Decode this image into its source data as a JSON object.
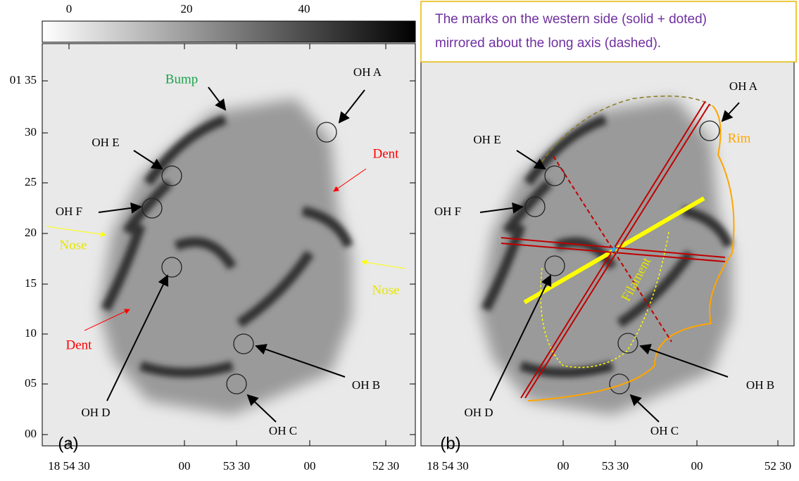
{
  "colorbar": {
    "ticks": [
      "0",
      "20",
      "40"
    ]
  },
  "note": {
    "lines": [
      "The marks on the western side (solid + doted)",
      "mirrored about the long axis (dashed)."
    ]
  },
  "panels": [
    {
      "label": "(a)",
      "yticks": [
        "01 35",
        "30",
        "25",
        "20",
        "15",
        "10",
        "05",
        "00"
      ],
      "xticks": [
        "18 54 30",
        "00",
        "53 30",
        "00",
        "52 30"
      ],
      "annotations": [
        "Bump",
        "OH A",
        "OH E",
        "Dent",
        "OH F",
        "Nose",
        "Nose",
        "Dent",
        "OH B",
        "OH D",
        "OH C"
      ]
    },
    {
      "label": "(b)",
      "xticks": [
        "18 54 30",
        "00",
        "53 30",
        "00",
        "52 30"
      ],
      "annotations": [
        "OH A",
        "Rim",
        "OH E",
        "OH F",
        "Filament",
        "OH B",
        "OH D",
        "OH C"
      ]
    }
  ]
}
